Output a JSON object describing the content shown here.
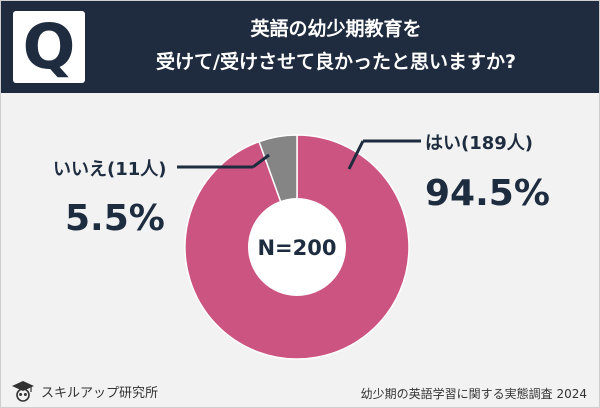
{
  "header": {
    "badge": "Q",
    "title_line1": "英語の幼少期教育を",
    "title_line2": "受けて/受けさせて良かったと思いますか?"
  },
  "colors": {
    "header_bg": "#1f2b3e",
    "yes": "#cc5480",
    "no": "#858585",
    "text": "#1e2c40"
  },
  "chart_data": {
    "type": "pie",
    "style": "donut",
    "center_label": "N=200",
    "slices": [
      {
        "label": "はい(189人)",
        "count": 189,
        "value": 94.5,
        "value_label": "94.5%"
      },
      {
        "label": "いいえ(11人)",
        "count": 11,
        "value": 5.5,
        "value_label": "5.5%"
      }
    ]
  },
  "footer": {
    "brand": "スキルアップ研究所",
    "brand_icon": "graduation-owl-icon",
    "survey": "幼少期の英語学習に関する実態調査 2024"
  }
}
